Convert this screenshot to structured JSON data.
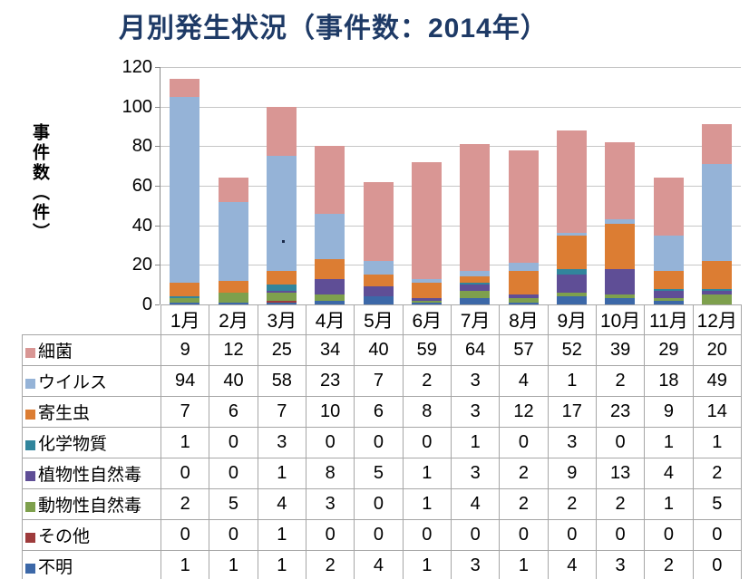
{
  "title": "月別発生状況（事件数：2014年）",
  "y_axis": {
    "title": "事件数（件）",
    "ticks": [
      0,
      20,
      40,
      60,
      80,
      100,
      120
    ],
    "max": 120
  },
  "chart_data": {
    "type": "bar",
    "stacked": true,
    "title": "月別発生状況（事件数：2014年）",
    "ylabel": "事件数（件）",
    "ylim": [
      0,
      120
    ],
    "grid": true,
    "legend_position": "table-row-headers",
    "categories": [
      "1月",
      "2月",
      "3月",
      "4月",
      "5月",
      "6月",
      "7月",
      "8月",
      "9月",
      "10月",
      "11月",
      "12月"
    ],
    "series": [
      {
        "name": "細菌",
        "color": "#d99694",
        "values": [
          9,
          12,
          25,
          34,
          40,
          59,
          64,
          57,
          52,
          39,
          29,
          20
        ]
      },
      {
        "name": "ウイルス",
        "color": "#95b3d7",
        "values": [
          94,
          40,
          58,
          23,
          7,
          2,
          3,
          4,
          1,
          2,
          18,
          49
        ]
      },
      {
        "name": "寄生虫",
        "color": "#dc7d33",
        "values": [
          7,
          6,
          7,
          10,
          6,
          8,
          3,
          12,
          17,
          23,
          9,
          14
        ]
      },
      {
        "name": "化学物質",
        "color": "#31859c",
        "values": [
          1,
          0,
          3,
          0,
          0,
          0,
          1,
          0,
          3,
          0,
          1,
          1
        ]
      },
      {
        "name": "植物性自然毒",
        "color": "#5f4e96",
        "values": [
          0,
          0,
          1,
          8,
          5,
          1,
          3,
          2,
          9,
          13,
          4,
          2
        ]
      },
      {
        "name": "動物性自然毒",
        "color": "#7ea04d",
        "values": [
          2,
          5,
          4,
          3,
          0,
          1,
          4,
          2,
          2,
          2,
          1,
          5
        ]
      },
      {
        "name": "その他",
        "color": "#9e3b3c",
        "values": [
          0,
          0,
          1,
          0,
          0,
          0,
          0,
          0,
          0,
          0,
          0,
          0
        ]
      },
      {
        "name": "不明",
        "color": "#3c68a8",
        "values": [
          1,
          1,
          1,
          2,
          4,
          1,
          3,
          1,
          4,
          3,
          2,
          0
        ]
      }
    ],
    "stack_order_bottom_to_top": [
      "不明",
      "その他",
      "動物性自然毒",
      "植物性自然毒",
      "化学物質",
      "寄生虫",
      "ウイルス",
      "細菌"
    ],
    "colors": {
      "title_text": "#1e3a66",
      "gridline": "#c6c6c6",
      "axis_line": "#898989",
      "table_border": "#a6a6a6"
    }
  }
}
